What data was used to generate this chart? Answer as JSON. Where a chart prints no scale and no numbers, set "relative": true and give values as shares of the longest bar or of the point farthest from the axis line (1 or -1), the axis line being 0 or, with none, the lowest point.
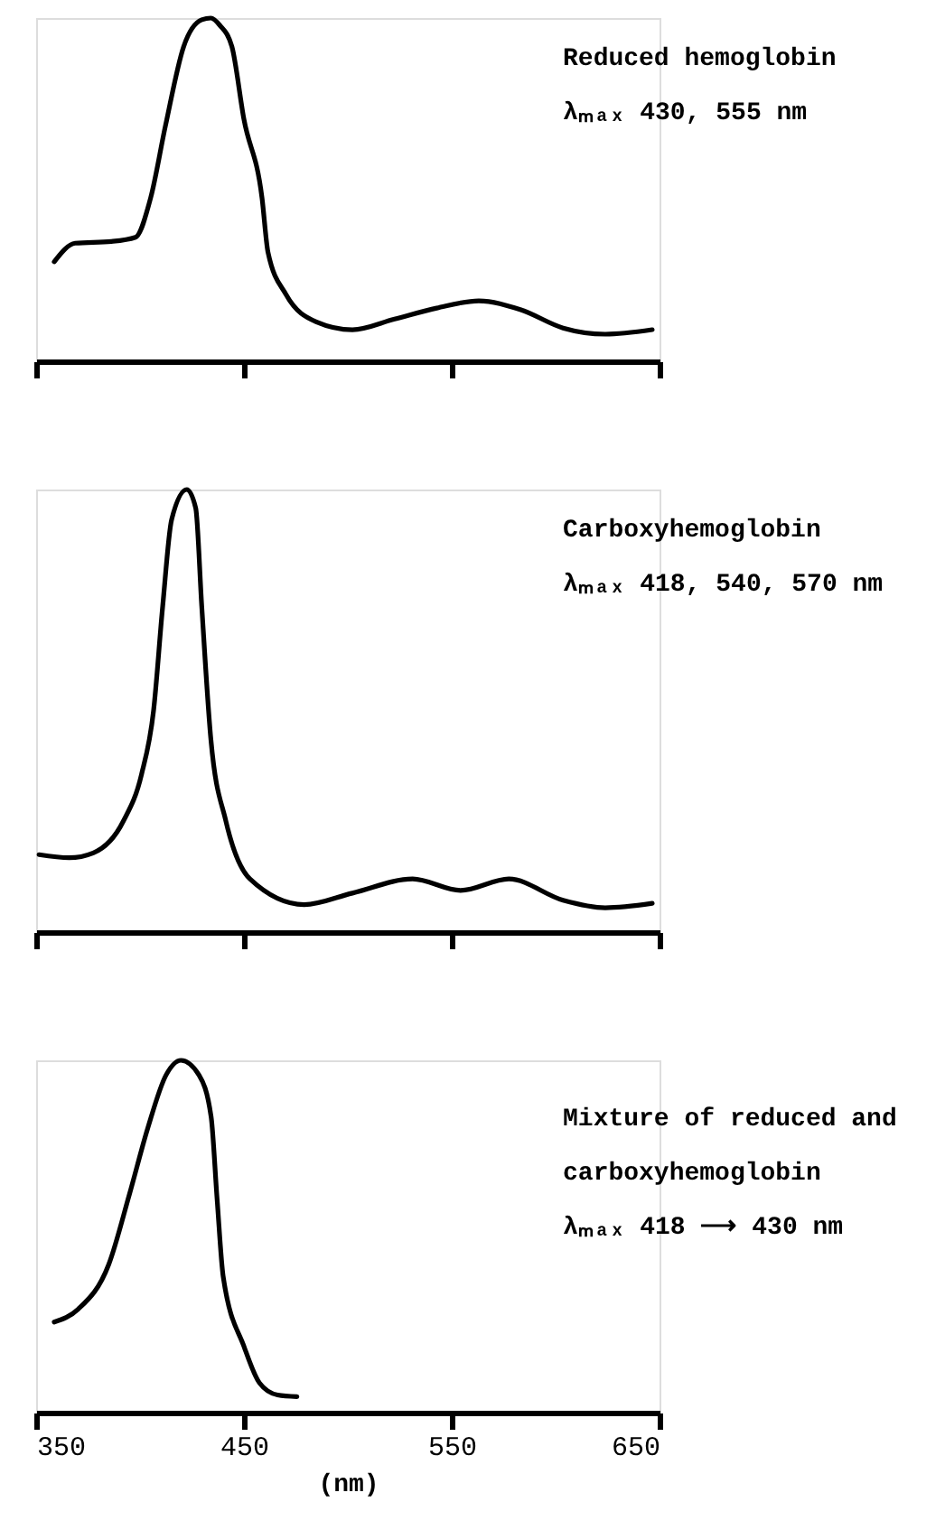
{
  "chart_data": [
    {
      "type": "line",
      "relative": true,
      "xlim": [
        350,
        650
      ],
      "xticks": [
        350,
        450,
        550,
        650
      ],
      "tick_labels": false,
      "annotations": [
        "Reduced hemoglobin",
        "λₘₐₓ 430, 555 nm"
      ],
      "series": [
        {
          "color": "#000000",
          "x": [
            358.7,
            368.8,
            386.2,
            397.8,
            405.1,
            412.3,
            421.0,
            429.7,
            434.1,
            438.4,
            444.2,
            450.0,
            458.7,
            461.6,
            470.3,
            484.8,
            502.2,
            522.5,
            542.8,
            563.0,
            583.3,
            603.6,
            623.9,
            646.5
          ],
          "values": [
            0.29,
            0.344,
            0.349,
            0.361,
            0.476,
            0.688,
            0.917,
            0.995,
            1.0,
            0.979,
            0.917,
            0.705,
            0.476,
            0.317,
            0.194,
            0.115,
            0.092,
            0.123,
            0.155,
            0.176,
            0.15,
            0.097,
            0.079,
            0.092
          ]
        }
      ]
    },
    {
      "type": "line",
      "relative": true,
      "xlim": [
        350,
        650
      ],
      "xticks": [
        350,
        450,
        550,
        650
      ],
      "tick_labels": false,
      "annotations": [
        "Carboxyhemoglobin",
        "λₘₐₓ 418, 540, 570 nm"
      ],
      "series": [
        {
          "color": "#000000",
          "x": [
            351.4,
            365.9,
            377.5,
            392.0,
            400.7,
            406.5,
            410.9,
            415.2,
            422.5,
            426.8,
            429.7,
            434.1,
            441.3,
            452.9,
            479.0,
            502.2,
            531.2,
            554.3,
            577.5,
            603.6,
            623.9,
            646.5
          ],
          "values": [
            0.175,
            0.168,
            0.179,
            0.251,
            0.356,
            0.5,
            0.736,
            0.932,
            1.0,
            0.958,
            0.736,
            0.435,
            0.251,
            0.12,
            0.062,
            0.088,
            0.12,
            0.094,
            0.12,
            0.072,
            0.055,
            0.065
          ]
        }
      ]
    },
    {
      "type": "line",
      "relative": true,
      "xlim": [
        350,
        650
      ],
      "xticks": [
        350,
        450,
        550,
        650
      ],
      "tick_labels": "x",
      "xlabel": "(nm)",
      "annotations": [
        "Mixture of reduced and",
        "carboxyhemoglobin",
        "λₘₐₓ 418 ⟶ 430 nm"
      ],
      "series": [
        {
          "color": "#000000",
          "x": [
            358.7,
            370.3,
            384.9,
            395.0,
            403.7,
            412.5,
            419.7,
            428.4,
            434.2,
            437.1,
            440.0,
            450.2,
            457.5,
            466.2,
            475.5
          ],
          "values": [
            0.257,
            0.294,
            0.42,
            0.622,
            0.807,
            0.958,
            1.0,
            0.958,
            0.84,
            0.605,
            0.387,
            0.185,
            0.084,
            0.05,
            0.045
          ]
        }
      ]
    }
  ]
}
